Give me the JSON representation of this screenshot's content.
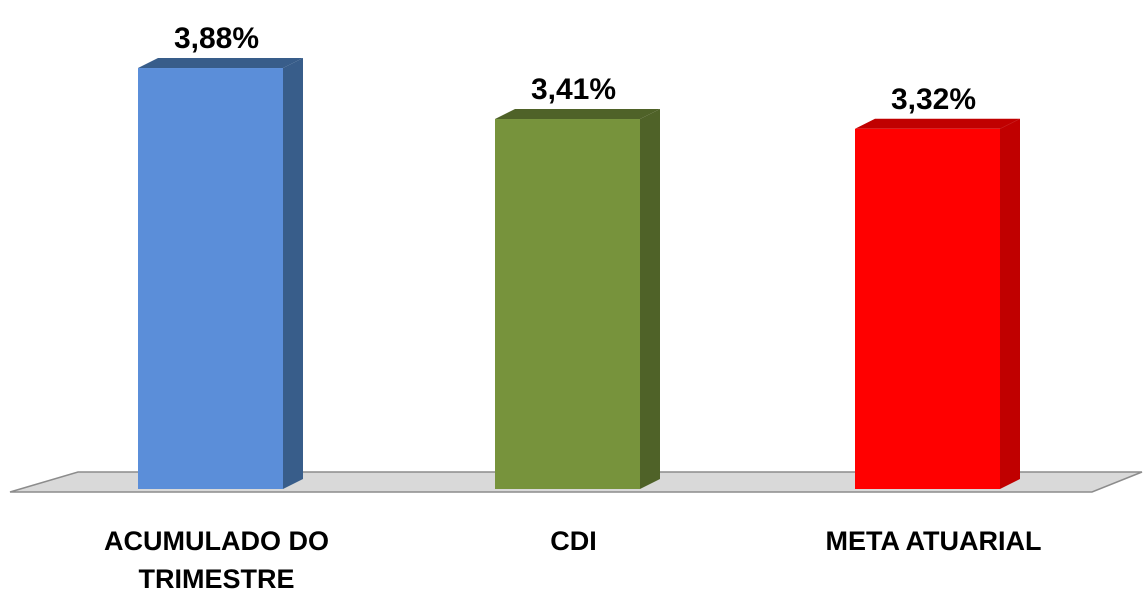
{
  "chart_data": {
    "type": "bar",
    "categories": [
      "ACUMULADO DO TRIMESTRE",
      "CDI",
      "META ATUARIAL"
    ],
    "category_lines": [
      [
        "ACUMULADO DO",
        "TRIMESTRE"
      ],
      [
        "CDI"
      ],
      [
        "META ATUARIAL"
      ]
    ],
    "values": [
      3.88,
      3.41,
      3.32
    ],
    "value_labels": [
      "3,88%",
      "3,41%",
      "3,32%"
    ],
    "colors": [
      "#5b8ed9",
      "#77933c",
      "#ff0000"
    ],
    "side_colors": [
      "#385d8a",
      "#4f6228",
      "#c00000"
    ],
    "grid": false,
    "legend": "none"
  }
}
